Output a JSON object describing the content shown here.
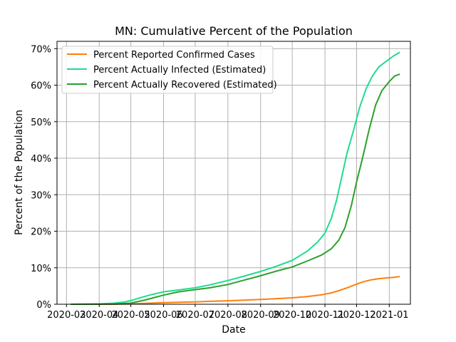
{
  "chart_data": {
    "type": "line",
    "title": "MN: Cumulative Percent of the Population",
    "xlabel": "Date",
    "ylabel": "Percent of the Population",
    "x_ticks": [
      "2020-03-01",
      "2020-04-01",
      "2020-05-01",
      "2020-06-01",
      "2020-07-01",
      "2020-08-01",
      "2020-09-01",
      "2020-10-01",
      "2020-11-01",
      "2020-12-01",
      "2021-01-01"
    ],
    "x_tick_labels": [
      "2020-03",
      "2020-04",
      "2020-05",
      "2020-06",
      "2020-07",
      "2020-08",
      "2020-09",
      "2020-10",
      "2020-11",
      "2020-12",
      "2021-01"
    ],
    "xlim": [
      "2020-02-21",
      "2021-01-21"
    ],
    "y_ticks": [
      0,
      10,
      20,
      30,
      40,
      50,
      60,
      70
    ],
    "y_tick_labels": [
      "0%",
      "10%",
      "20%",
      "30%",
      "40%",
      "50%",
      "60%",
      "70%"
    ],
    "ylim": [
      0,
      72
    ],
    "grid": true,
    "legend_position": "top-left",
    "series": [
      {
        "name": "Percent Reported Confirmed Cases",
        "color": "#ff7f0e",
        "points": [
          [
            "2020-03-05",
            0
          ],
          [
            "2020-04-01",
            0.01
          ],
          [
            "2020-04-15",
            0.02
          ],
          [
            "2020-05-01",
            0.1
          ],
          [
            "2020-05-15",
            0.25
          ],
          [
            "2020-06-01",
            0.45
          ],
          [
            "2020-06-15",
            0.55
          ],
          [
            "2020-07-01",
            0.65
          ],
          [
            "2020-07-15",
            0.8
          ],
          [
            "2020-08-01",
            0.95
          ],
          [
            "2020-08-15",
            1.1
          ],
          [
            "2020-09-01",
            1.3
          ],
          [
            "2020-09-15",
            1.5
          ],
          [
            "2020-10-01",
            1.75
          ],
          [
            "2020-10-15",
            2.1
          ],
          [
            "2020-10-29",
            2.6
          ],
          [
            "2020-11-07",
            3.1
          ],
          [
            "2020-11-15",
            3.8
          ],
          [
            "2020-11-23",
            4.6
          ],
          [
            "2020-12-01",
            5.5
          ],
          [
            "2020-12-08",
            6.2
          ],
          [
            "2020-12-15",
            6.7
          ],
          [
            "2020-12-22",
            7.0
          ],
          [
            "2020-12-29",
            7.2
          ],
          [
            "2021-01-06",
            7.4
          ],
          [
            "2021-01-11",
            7.6
          ]
        ]
      },
      {
        "name": "Percent Actually Infected (Estimated)",
        "color": "#1ddc8f",
        "points": [
          [
            "2020-03-05",
            0
          ],
          [
            "2020-03-20",
            0.02
          ],
          [
            "2020-04-01",
            0.1
          ],
          [
            "2020-04-15",
            0.3
          ],
          [
            "2020-04-25",
            0.6
          ],
          [
            "2020-05-01",
            1.0
          ],
          [
            "2020-05-10",
            1.8
          ],
          [
            "2020-05-20",
            2.6
          ],
          [
            "2020-06-01",
            3.4
          ],
          [
            "2020-06-15",
            3.9
          ],
          [
            "2020-07-01",
            4.5
          ],
          [
            "2020-07-15",
            5.3
          ],
          [
            "2020-08-01",
            6.5
          ],
          [
            "2020-08-15",
            7.6
          ],
          [
            "2020-09-01",
            9.0
          ],
          [
            "2020-09-15",
            10.3
          ],
          [
            "2020-10-01",
            12.0
          ],
          [
            "2020-10-15",
            14.5
          ],
          [
            "2020-10-25",
            17.0
          ],
          [
            "2020-11-01",
            19.5
          ],
          [
            "2020-11-07",
            23.5
          ],
          [
            "2020-11-12",
            28.5
          ],
          [
            "2020-11-17",
            35.0
          ],
          [
            "2020-11-22",
            41.5
          ],
          [
            "2020-11-28",
            47.5
          ],
          [
            "2020-12-04",
            54.0
          ],
          [
            "2020-12-10",
            59.0
          ],
          [
            "2020-12-16",
            62.5
          ],
          [
            "2020-12-22",
            65.0
          ],
          [
            "2020-12-29",
            66.5
          ],
          [
            "2021-01-05",
            68.0
          ],
          [
            "2021-01-11",
            69.0
          ]
        ]
      },
      {
        "name": "Percent Actually Recovered (Estimated)",
        "color": "#2ca02c",
        "points": [
          [
            "2020-03-05",
            0
          ],
          [
            "2020-04-01",
            0.01
          ],
          [
            "2020-04-15",
            0.05
          ],
          [
            "2020-05-01",
            0.3
          ],
          [
            "2020-05-15",
            1.2
          ],
          [
            "2020-06-01",
            2.5
          ],
          [
            "2020-06-15",
            3.4
          ],
          [
            "2020-07-01",
            4.0
          ],
          [
            "2020-07-15",
            4.5
          ],
          [
            "2020-08-01",
            5.4
          ],
          [
            "2020-08-15",
            6.5
          ],
          [
            "2020-09-01",
            7.8
          ],
          [
            "2020-09-15",
            9.0
          ],
          [
            "2020-10-01",
            10.2
          ],
          [
            "2020-10-15",
            11.8
          ],
          [
            "2020-10-29",
            13.5
          ],
          [
            "2020-11-07",
            15.2
          ],
          [
            "2020-11-14",
            17.5
          ],
          [
            "2020-11-20",
            21.0
          ],
          [
            "2020-11-26",
            27.0
          ],
          [
            "2020-12-01",
            33.5
          ],
          [
            "2020-12-07",
            40.5
          ],
          [
            "2020-12-13",
            48.0
          ],
          [
            "2020-12-19",
            54.5
          ],
          [
            "2020-12-25",
            58.5
          ],
          [
            "2021-01-01",
            61.0
          ],
          [
            "2021-01-06",
            62.5
          ],
          [
            "2021-01-11",
            63.0
          ]
        ]
      }
    ]
  }
}
